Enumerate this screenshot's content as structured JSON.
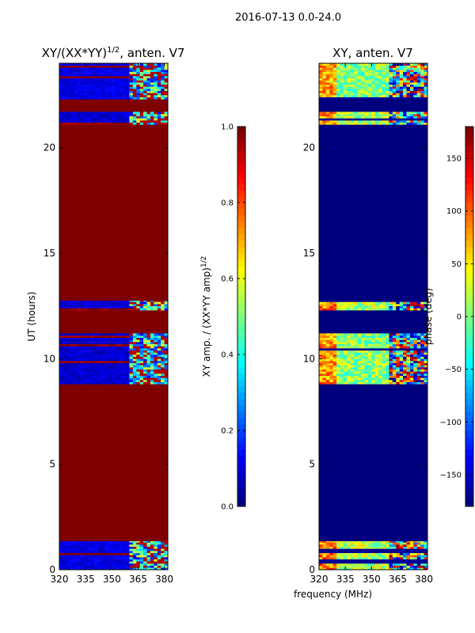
{
  "suptitle": "2016-07-13 0.0-24.0",
  "colors": {
    "jet": [
      "#00007f",
      "#0000ff",
      "#007fff",
      "#00ffff",
      "#7fff7f",
      "#ffff00",
      "#ff7f00",
      "#ff0000",
      "#7f0000"
    ]
  },
  "chart_data": [
    {
      "type": "heatmap",
      "title_text": "XY/(XX*YY)",
      "title_sup": "1/2",
      "title_suffix": ", anten. V7",
      "xlabel": "",
      "ylabel": "UT (hours)",
      "xlim": [
        320,
        382
      ],
      "ylim": [
        0,
        24
      ],
      "xticks": [
        320,
        335,
        350,
        365,
        380
      ],
      "yticks": [
        0,
        5,
        10,
        15,
        20
      ],
      "colorbar": {
        "label_text": "XY amp. / (XX*YY amp)",
        "label_sup": "1/2",
        "range": [
          0.0,
          1.0
        ],
        "ticks": [
          "0.0",
          "0.2",
          "0.4",
          "0.6",
          "0.8",
          "1.0"
        ]
      },
      "background_value": 1.0,
      "bands": [
        {
          "y": [
            0.0,
            1.35
          ],
          "base": 0.1,
          "variable_from_mhz": 359,
          "mode": "amp"
        },
        {
          "y": [
            8.8,
            11.2
          ],
          "base": 0.08,
          "variable_from_mhz": 359,
          "mode": "amp"
        },
        {
          "y": [
            12.3,
            12.75
          ],
          "base": 0.08,
          "variable_from_mhz": 359,
          "mode": "amp"
        },
        {
          "y": [
            21.1,
            21.7
          ],
          "base": 0.08,
          "variable_from_mhz": 359,
          "mode": "amp"
        },
        {
          "y": [
            22.3,
            24.0
          ],
          "base": 0.1,
          "variable_from_mhz": 359,
          "mode": "amp"
        }
      ]
    },
    {
      "type": "heatmap",
      "title_text": "XY, anten. V7",
      "title_sup": "",
      "title_suffix": "",
      "xlabel": "frequency (MHz)",
      "ylabel": "",
      "xlim": [
        320,
        382
      ],
      "ylim": [
        0,
        24
      ],
      "xticks": [
        320,
        335,
        350,
        365,
        380
      ],
      "yticks": [
        0,
        5,
        10,
        15,
        20
      ],
      "colorbar": {
        "label_text": "phase (deg)",
        "label_sup": "",
        "range": [
          -180,
          180
        ],
        "ticks": [
          "−150",
          "−100",
          "−50",
          "0",
          "50",
          "100",
          "150"
        ]
      },
      "background_value": 0.0,
      "bands": [
        {
          "y": [
            0.0,
            1.35
          ],
          "base": 0.55,
          "variable_from_mhz": 359,
          "mode": "phase"
        },
        {
          "y": [
            8.8,
            11.2
          ],
          "base": 0.52,
          "variable_from_mhz": 359,
          "mode": "phase"
        },
        {
          "y": [
            12.3,
            12.75
          ],
          "base": 0.55,
          "variable_from_mhz": 359,
          "mode": "phase"
        },
        {
          "y": [
            21.1,
            21.7
          ],
          "base": 0.55,
          "variable_from_mhz": 359,
          "mode": "phase"
        },
        {
          "y": [
            22.3,
            24.0
          ],
          "base": 0.5,
          "variable_from_mhz": 359,
          "mode": "phase"
        }
      ]
    }
  ]
}
